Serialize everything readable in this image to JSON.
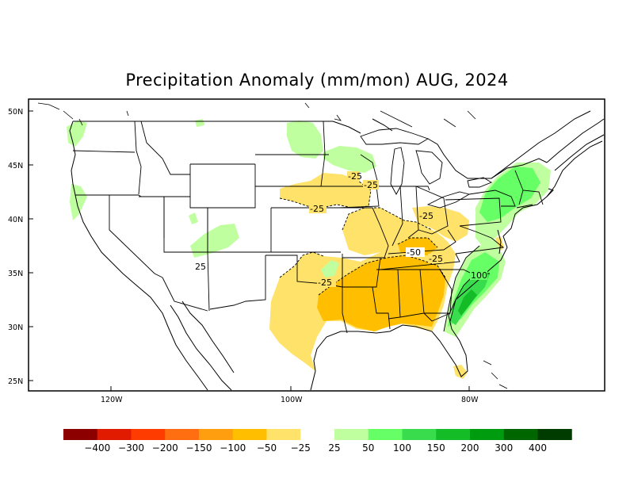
{
  "title": "Precipitation Anomaly (mm/mon) AUG, 2024",
  "latitude_labels": [
    "50N",
    "45N",
    "40N",
    "35N",
    "30N",
    "25N"
  ],
  "longitude_labels": [
    "120W",
    "100W",
    "80W"
  ],
  "contour_labels": {
    "northern_plains_1": "-25",
    "northern_plains_2": "-25",
    "central_plains": "-25",
    "lower_mississippi": "-25",
    "ohio_valley": "-25",
    "kentucky": "-50",
    "appalachia": "-25",
    "arizona": "25",
    "carolinas": "100"
  },
  "legend": {
    "colors": [
      "#8c0000",
      "#e01b00",
      "#ff3c00",
      "#ff6e10",
      "#ff9f10",
      "#ffbe00",
      "#ffe26a",
      "#ffffff",
      "#bfffa0",
      "#66ff66",
      "#38dc4c",
      "#14bc28",
      "#009c10",
      "#006600",
      "#003c00"
    ],
    "labels": [
      "−400",
      "−300",
      "−200",
      "−150",
      "−100",
      "−50",
      "−25",
      "25",
      "50",
      "100",
      "150",
      "200",
      "300",
      "400"
    ]
  }
}
